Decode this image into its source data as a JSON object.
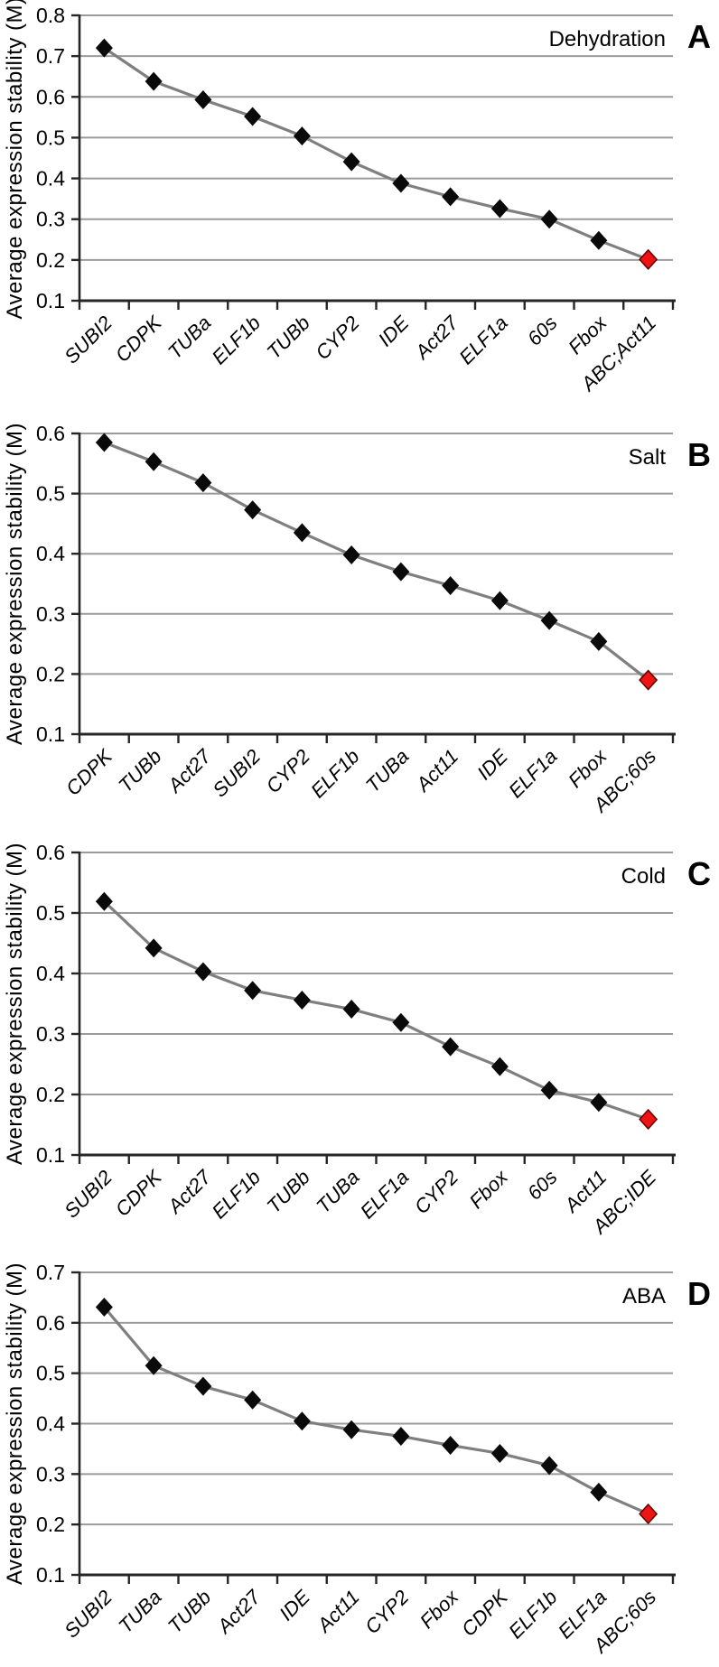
{
  "figure": {
    "ylabel": "Average expression stability (M)",
    "panel_count": 4
  },
  "colors": {
    "background": "#ffffff",
    "data_line": "#7f7f7f",
    "marker_fill": "#0a0a0a",
    "highlight_marker_fill": "#ee1414",
    "highlight_marker_edge": "#5e0000",
    "gridline": "#9b9b9b",
    "axis": "#262626",
    "text": "#000000"
  },
  "chart_data": [
    {
      "type": "line",
      "panel_letter": "A",
      "condition": "Dehydration",
      "ylabel": "Average expression stability (M)",
      "ylim": [
        0.1,
        0.8
      ],
      "ytick_step": 0.1,
      "grid": true,
      "legend_position": "none",
      "marker": "diamond",
      "highlight_last_point": true,
      "categories": [
        "SUBI2",
        "CDPK",
        "TUBa",
        "ELF1b",
        "TUBb",
        "CYP2",
        "IDE",
        "Act27",
        "ELF1a",
        "60s",
        "Fbox",
        "ABC;Act11"
      ],
      "values": [
        0.72,
        0.638,
        0.593,
        0.552,
        0.504,
        0.441,
        0.388,
        0.355,
        0.326,
        0.3,
        0.248,
        0.201
      ]
    },
    {
      "type": "line",
      "panel_letter": "B",
      "condition": "Salt",
      "ylabel": "Average expression stability (M)",
      "ylim": [
        0.1,
        0.6
      ],
      "ytick_step": 0.1,
      "grid": true,
      "legend_position": "none",
      "marker": "diamond",
      "highlight_last_point": true,
      "categories": [
        "CDPK",
        "TUBb",
        "Act27",
        "SUBI2",
        "CYP2",
        "ELF1b",
        "TUBa",
        "Act11",
        "IDE",
        "ELF1a",
        "Fbox",
        "ABC;60s"
      ],
      "values": [
        0.585,
        0.553,
        0.518,
        0.473,
        0.435,
        0.398,
        0.37,
        0.347,
        0.322,
        0.289,
        0.254,
        0.19
      ]
    },
    {
      "type": "line",
      "panel_letter": "C",
      "condition": "Cold",
      "ylabel": "Average expression stability (M)",
      "ylim": [
        0.1,
        0.6
      ],
      "ytick_step": 0.1,
      "grid": true,
      "legend_position": "none",
      "marker": "diamond",
      "highlight_last_point": true,
      "categories": [
        "SUBI2",
        "CDPK",
        "Act27",
        "ELF1b",
        "TUBb",
        "TUBa",
        "ELF1a",
        "CYP2",
        "Fbox",
        "60s",
        "Act11",
        "ABC;IDE"
      ],
      "values": [
        0.519,
        0.442,
        0.403,
        0.372,
        0.356,
        0.341,
        0.319,
        0.279,
        0.246,
        0.207,
        0.187,
        0.159
      ]
    },
    {
      "type": "line",
      "panel_letter": "D",
      "condition": "ABA",
      "ylabel": "Average expression stability (M)",
      "ylim": [
        0.1,
        0.7
      ],
      "ytick_step": 0.1,
      "grid": true,
      "legend_position": "none",
      "marker": "diamond",
      "highlight_last_point": true,
      "categories": [
        "SUBI2",
        "TUBa",
        "TUBb",
        "Act27",
        "IDE",
        "Act11",
        "CYP2",
        "Fbox",
        "CDPK",
        "ELF1b",
        "ELF1a",
        "ABC;60s"
      ],
      "values": [
        0.631,
        0.515,
        0.474,
        0.447,
        0.405,
        0.388,
        0.375,
        0.357,
        0.341,
        0.317,
        0.264,
        0.221
      ]
    }
  ]
}
